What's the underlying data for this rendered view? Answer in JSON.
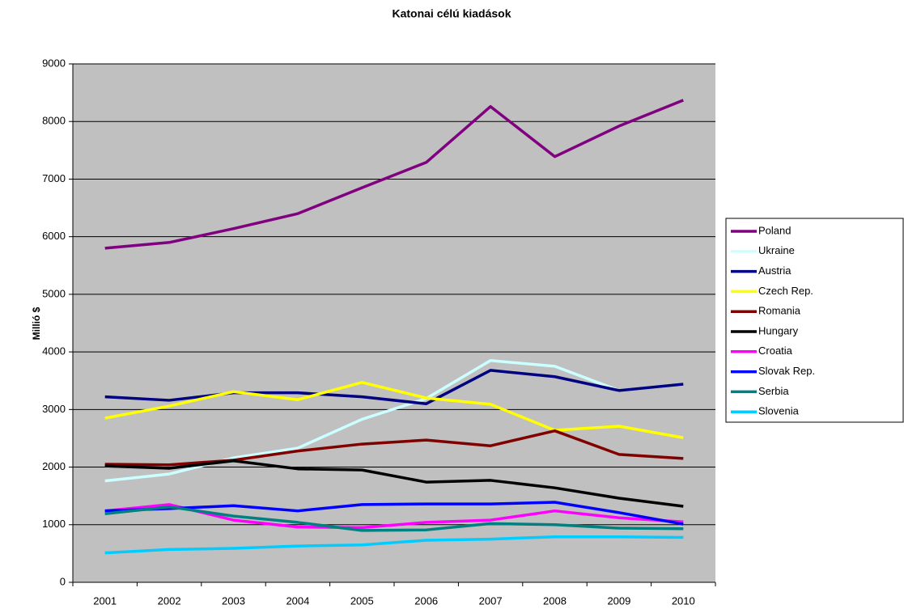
{
  "chart_data": {
    "type": "line",
    "title": "Katonai célú kiadások",
    "y_label": "Millió $",
    "categories": [
      "2001",
      "2002",
      "2003",
      "2004",
      "2005",
      "2006",
      "2007",
      "2008",
      "2009",
      "2010"
    ],
    "series": [
      {
        "name": "Poland",
        "color": "#800080",
        "values": [
          5800,
          5900,
          6140,
          6400,
          6850,
          7290,
          8260,
          7390,
          7920,
          8370
        ]
      },
      {
        "name": "Ukraine",
        "color": "#ccffff",
        "values": [
          1760,
          1880,
          2160,
          2330,
          2830,
          3190,
          3850,
          3750,
          3330,
          3440
        ]
      },
      {
        "name": "Austria",
        "color": "#000080",
        "values": [
          3220,
          3160,
          3290,
          3290,
          3220,
          3100,
          3680,
          3570,
          3330,
          3440
        ]
      },
      {
        "name": "Czech Rep.",
        "color": "#ffff00",
        "values": [
          2850,
          3060,
          3310,
          3170,
          3470,
          3200,
          3090,
          2640,
          2710,
          2510
        ]
      },
      {
        "name": "Romania",
        "color": "#800000",
        "values": [
          2050,
          2040,
          2120,
          2280,
          2400,
          2470,
          2370,
          2630,
          2220,
          2150
        ]
      },
      {
        "name": "Hungary",
        "color": "#000000",
        "values": [
          2020,
          1980,
          2110,
          1970,
          1950,
          1740,
          1770,
          1640,
          1460,
          1320
        ]
      },
      {
        "name": "Croatia",
        "color": "#ff00ff",
        "values": [
          1240,
          1350,
          1080,
          960,
          950,
          1040,
          1080,
          1240,
          1120,
          1050
        ]
      },
      {
        "name": "Slovak Rep.",
        "color": "#0000ff",
        "values": [
          1240,
          1280,
          1330,
          1240,
          1350,
          1360,
          1360,
          1390,
          1210,
          1010
        ]
      },
      {
        "name": "Serbia",
        "color": "#008080",
        "values": [
          1190,
          1310,
          1150,
          1040,
          900,
          910,
          1020,
          1000,
          940,
          930
        ]
      },
      {
        "name": "Slovenia",
        "color": "#00ccff",
        "values": [
          510,
          570,
          590,
          630,
          650,
          730,
          750,
          790,
          790,
          780
        ]
      }
    ],
    "ylim": [
      0,
      9000
    ],
    "yticks": [
      0,
      1000,
      2000,
      3000,
      4000,
      5000,
      6000,
      7000,
      8000,
      9000
    ],
    "grid": true,
    "legend": "right"
  }
}
